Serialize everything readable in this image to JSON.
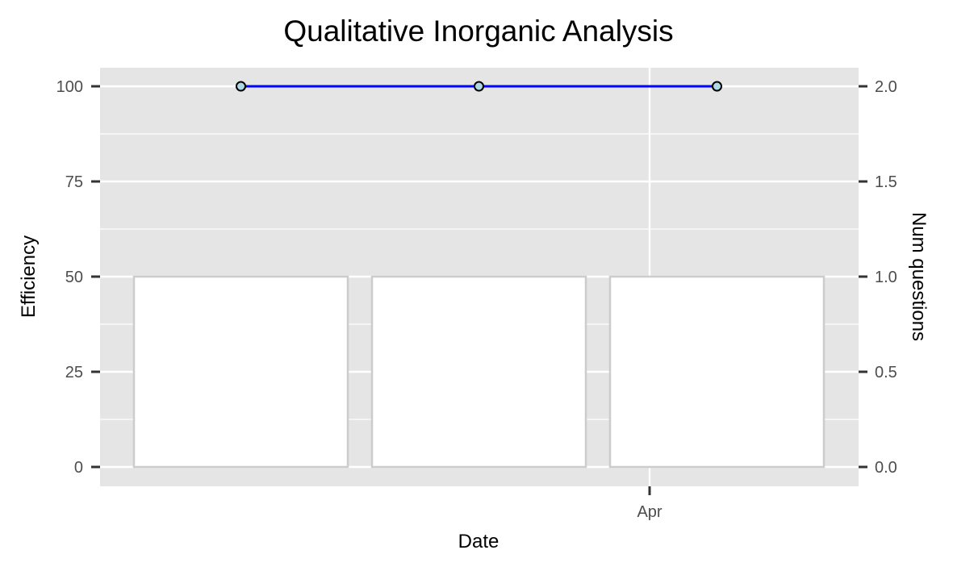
{
  "chart_data": {
    "type": "bar+line",
    "title": "Qualitative Inorganic Analysis",
    "xlabel": "Date",
    "ylabel_left": "Efficiency",
    "ylabel_right": "Num questions",
    "x_tick_labels": [
      "Apr"
    ],
    "y_left_ticks": [
      "0",
      "25",
      "50",
      "75",
      "100"
    ],
    "y_right_ticks": [
      "0.0",
      "0.5",
      "1.0",
      "1.5",
      "2.0"
    ],
    "ylim_left": [
      0,
      100
    ],
    "ylim_right": [
      0,
      2
    ],
    "grid": true,
    "legend": "none",
    "bars": {
      "axis": "right",
      "values": [
        1,
        1,
        1
      ],
      "fill": "#ffffff",
      "stroke": "#cccccc"
    },
    "line": {
      "axis": "left",
      "values": [
        100,
        100,
        100
      ],
      "color": "#0000ff",
      "marker_fill": "#add8e6",
      "marker_stroke": "#000000"
    },
    "panel_color": "#e5e5e5"
  }
}
